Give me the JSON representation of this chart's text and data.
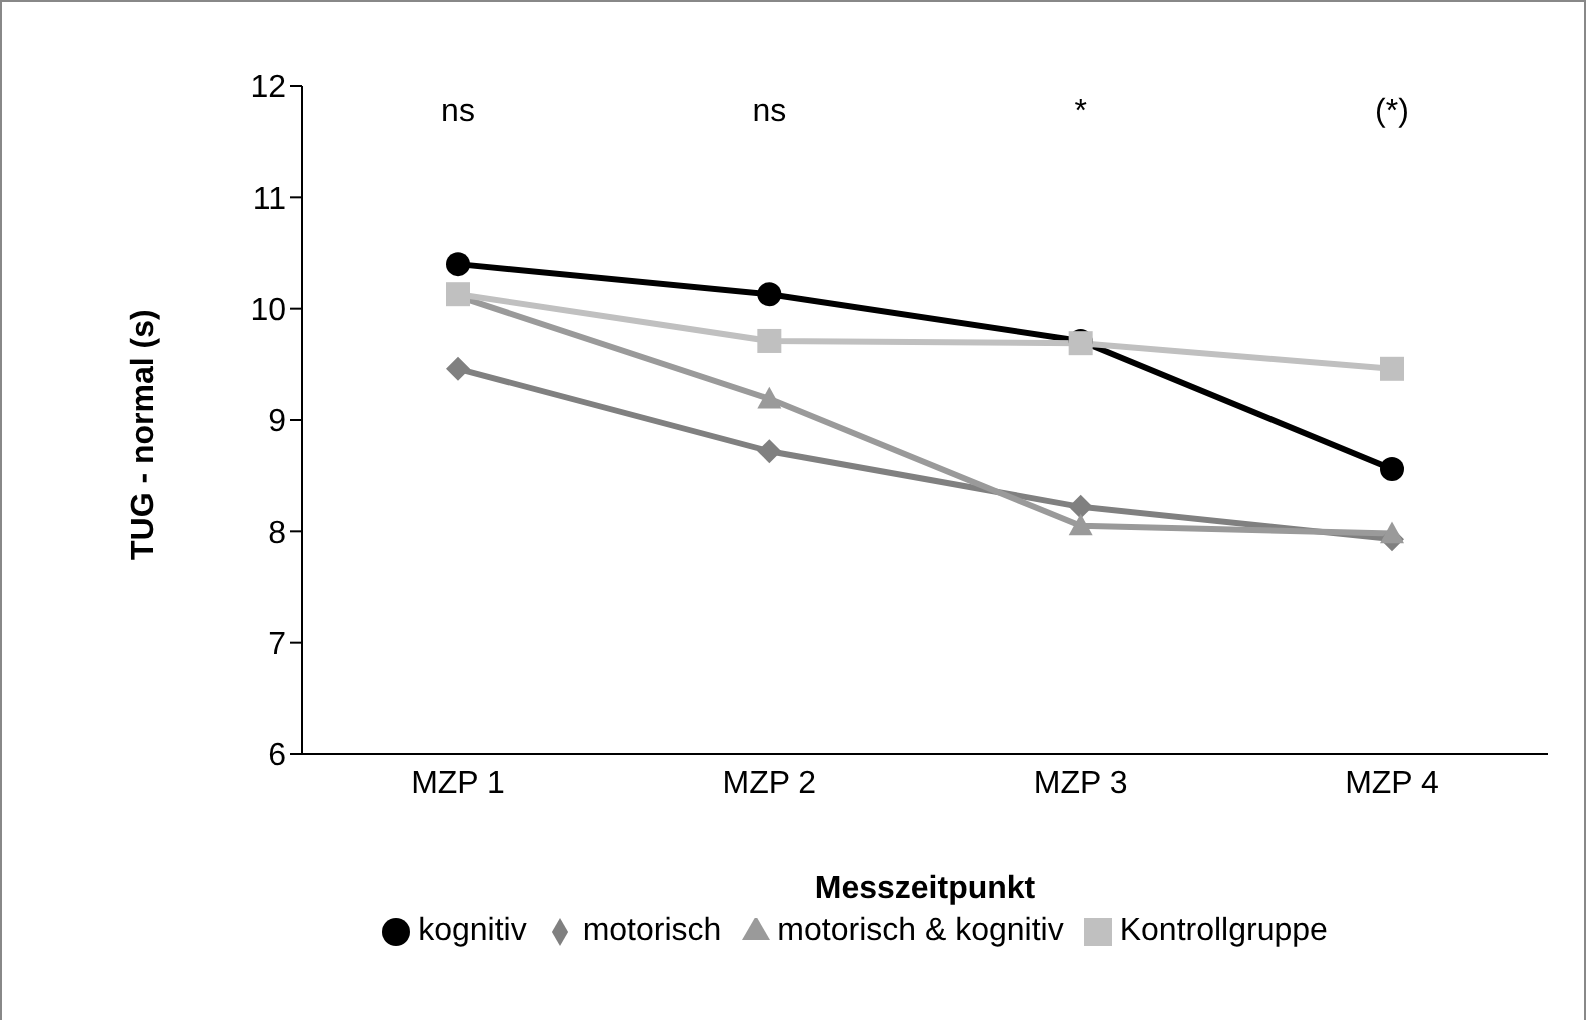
{
  "chart_data": {
    "type": "line",
    "xlabel": "Messzeitpunkt",
    "ylabel": "TUG - normal (s)",
    "categories": [
      "MZP 1",
      "MZP 2",
      "MZP 3",
      "MZP 4"
    ],
    "series": [
      {
        "name": "kognitiv",
        "color": "#000000",
        "marker": "circle",
        "values": [
          10.4,
          10.13,
          9.71,
          8.56
        ]
      },
      {
        "name": "motorisch",
        "color": "#808080",
        "marker": "diamond",
        "values": [
          9.46,
          8.72,
          8.22,
          7.93
        ]
      },
      {
        "name": "motorisch & kognitiv",
        "color": "#9a9a9a",
        "marker": "triangle",
        "values": [
          10.11,
          9.19,
          8.05,
          7.98
        ]
      },
      {
        "name": "Kontrollgruppe",
        "color": "#c0c0c0",
        "marker": "square",
        "values": [
          10.13,
          9.71,
          9.69,
          9.46
        ]
      }
    ],
    "ylim": [
      6,
      12
    ],
    "yticks": [
      6,
      7,
      8,
      9,
      10,
      11,
      12
    ],
    "grid": false,
    "legend": "bottom",
    "line_style": "solid",
    "annotations": [
      "ns",
      "ns",
      "*",
      "(*)"
    ]
  }
}
